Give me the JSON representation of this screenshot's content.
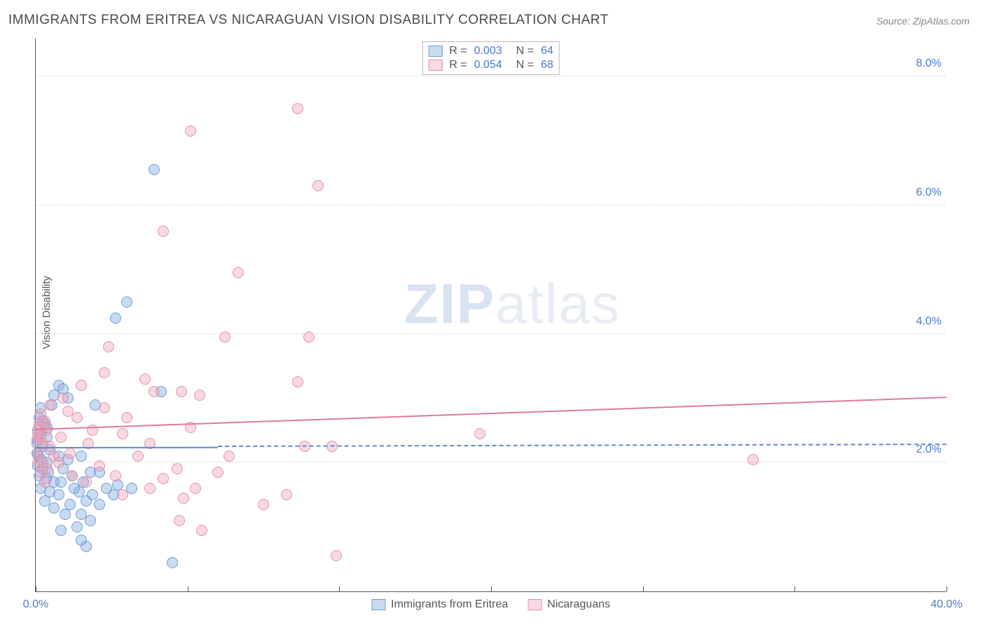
{
  "title": "IMMIGRANTS FROM ERITREA VS NICARAGUAN VISION DISABILITY CORRELATION CHART",
  "source_label": "Source:",
  "source_value": "ZipAtlas.com",
  "ylabel": "Vision Disability",
  "watermark_a": "ZIP",
  "watermark_b": "atlas",
  "chart": {
    "type": "scatter",
    "background_color": "#ffffff",
    "grid_color": "#dddddd",
    "axis_color": "#555555",
    "tick_label_color": "#4a7ac7",
    "marker_radius": 8,
    "marker_border_width": 1.5,
    "xlim": [
      0,
      40
    ],
    "ylim": [
      0,
      8.6
    ],
    "xticks": [
      0,
      6.67,
      13.33,
      20,
      26.67,
      33.33,
      40
    ],
    "xtick_labels": {
      "0": "0.0%",
      "40": "40.0%"
    },
    "yticks": [
      2,
      4,
      6,
      8
    ],
    "ytick_labels": {
      "2": "2.0%",
      "4": "4.0%",
      "6": "6.0%",
      "8": "8.0%"
    },
    "series": [
      {
        "name": "Immigrants from Eritrea",
        "fill": "rgba(135,175,225,0.45)",
        "stroke": "#6f9fd8",
        "R": "0.003",
        "N": "64",
        "trend": {
          "color": "#5a8bd0",
          "y_at_x0": 2.22,
          "y_at_xmax": 2.24,
          "x1": 8
        },
        "trend_dash": {
          "color": "#5a8bd0",
          "y_at_x0": 2.24,
          "y_at_xmax": 2.28,
          "x0": 8
        },
        "points": [
          [
            5.2,
            6.55
          ],
          [
            4.0,
            4.5
          ],
          [
            3.5,
            4.25
          ],
          [
            1.0,
            3.2
          ],
          [
            1.2,
            3.15
          ],
          [
            0.8,
            3.05
          ],
          [
            1.4,
            3.0
          ],
          [
            0.2,
            2.85
          ],
          [
            0.15,
            2.7
          ],
          [
            0.3,
            2.65
          ],
          [
            5.5,
            3.1
          ],
          [
            2.6,
            2.9
          ],
          [
            0.4,
            2.6
          ],
          [
            0.1,
            2.5
          ],
          [
            0.2,
            2.45
          ],
          [
            0.5,
            2.4
          ],
          [
            0.1,
            2.35
          ],
          [
            0.05,
            2.3
          ],
          [
            0.3,
            2.25
          ],
          [
            0.6,
            2.2
          ],
          [
            0.05,
            2.15
          ],
          [
            0.12,
            2.1
          ],
          [
            0.25,
            2.05
          ],
          [
            0.5,
            2.0
          ],
          [
            1.0,
            2.1
          ],
          [
            1.4,
            2.05
          ],
          [
            2.0,
            2.1
          ],
          [
            0.1,
            1.95
          ],
          [
            0.3,
            1.9
          ],
          [
            0.55,
            1.85
          ],
          [
            1.2,
            1.9
          ],
          [
            1.6,
            1.8
          ],
          [
            2.4,
            1.85
          ],
          [
            0.15,
            1.8
          ],
          [
            0.45,
            1.75
          ],
          [
            0.8,
            1.7
          ],
          [
            1.1,
            1.7
          ],
          [
            1.7,
            1.6
          ],
          [
            2.1,
            1.7
          ],
          [
            2.8,
            1.85
          ],
          [
            3.1,
            1.6
          ],
          [
            3.6,
            1.65
          ],
          [
            4.2,
            1.6
          ],
          [
            0.2,
            1.6
          ],
          [
            0.6,
            1.55
          ],
          [
            1.0,
            1.5
          ],
          [
            1.9,
            1.55
          ],
          [
            2.5,
            1.5
          ],
          [
            1.5,
            1.35
          ],
          [
            0.4,
            1.4
          ],
          [
            2.2,
            1.4
          ],
          [
            2.8,
            1.35
          ],
          [
            3.4,
            1.5
          ],
          [
            0.8,
            1.3
          ],
          [
            1.3,
            1.2
          ],
          [
            2.0,
            1.2
          ],
          [
            1.8,
            1.0
          ],
          [
            2.4,
            1.1
          ],
          [
            1.1,
            0.95
          ],
          [
            2.0,
            0.8
          ],
          [
            2.2,
            0.7
          ],
          [
            6.0,
            0.45
          ],
          [
            0.5,
            2.55
          ],
          [
            0.7,
            2.9
          ]
        ]
      },
      {
        "name": "Nicaraguans",
        "fill": "rgba(240,160,180,0.40)",
        "stroke": "#e394ab",
        "R": "0.054",
        "N": "68",
        "trend": {
          "color": "#e07a95",
          "y_at_x0": 2.5,
          "y_at_xmax": 3.0
        },
        "points": [
          [
            11.5,
            7.5
          ],
          [
            6.8,
            7.15
          ],
          [
            12.4,
            6.3
          ],
          [
            5.6,
            5.6
          ],
          [
            8.9,
            4.95
          ],
          [
            8.3,
            3.95
          ],
          [
            12.0,
            3.95
          ],
          [
            3.2,
            3.8
          ],
          [
            3.0,
            3.4
          ],
          [
            4.8,
            3.3
          ],
          [
            11.5,
            3.25
          ],
          [
            2.0,
            3.2
          ],
          [
            5.2,
            3.1
          ],
          [
            6.4,
            3.1
          ],
          [
            7.2,
            3.05
          ],
          [
            1.2,
            3.0
          ],
          [
            0.6,
            2.9
          ],
          [
            1.4,
            2.8
          ],
          [
            3.0,
            2.85
          ],
          [
            0.2,
            2.75
          ],
          [
            0.4,
            2.65
          ],
          [
            1.8,
            2.7
          ],
          [
            4.0,
            2.7
          ],
          [
            0.15,
            2.55
          ],
          [
            0.5,
            2.5
          ],
          [
            2.5,
            2.5
          ],
          [
            6.8,
            2.55
          ],
          [
            0.2,
            2.4
          ],
          [
            0.05,
            2.35
          ],
          [
            1.1,
            2.4
          ],
          [
            3.8,
            2.45
          ],
          [
            19.5,
            2.45
          ],
          [
            0.3,
            2.3
          ],
          [
            0.6,
            2.25
          ],
          [
            2.3,
            2.3
          ],
          [
            5.0,
            2.3
          ],
          [
            11.8,
            2.25
          ],
          [
            13.0,
            2.25
          ],
          [
            0.1,
            2.15
          ],
          [
            0.8,
            2.1
          ],
          [
            1.5,
            2.15
          ],
          [
            4.5,
            2.1
          ],
          [
            8.5,
            2.1
          ],
          [
            0.1,
            2.0
          ],
          [
            31.5,
            2.05
          ],
          [
            1.0,
            2.0
          ],
          [
            2.8,
            1.95
          ],
          [
            6.2,
            1.9
          ],
          [
            8.0,
            1.85
          ],
          [
            0.2,
            1.85
          ],
          [
            1.6,
            1.8
          ],
          [
            3.5,
            1.8
          ],
          [
            5.0,
            1.6
          ],
          [
            5.6,
            1.75
          ],
          [
            0.4,
            1.7
          ],
          [
            2.2,
            1.7
          ],
          [
            7.0,
            1.6
          ],
          [
            6.5,
            1.45
          ],
          [
            3.8,
            1.5
          ],
          [
            10.0,
            1.35
          ],
          [
            11.0,
            1.5
          ],
          [
            6.3,
            1.1
          ],
          [
            7.3,
            0.95
          ],
          [
            13.2,
            0.55
          ],
          [
            0.15,
            2.6
          ],
          [
            0.08,
            2.45
          ],
          [
            0.3,
            2.0
          ],
          [
            0.5,
            1.9
          ]
        ]
      }
    ]
  },
  "legend_bottom": [
    {
      "label": "Immigrants from Eritrea",
      "fill": "rgba(135,175,225,0.45)",
      "stroke": "#6f9fd8"
    },
    {
      "label": "Nicaraguans",
      "fill": "rgba(240,160,180,0.40)",
      "stroke": "#e394ab"
    }
  ]
}
